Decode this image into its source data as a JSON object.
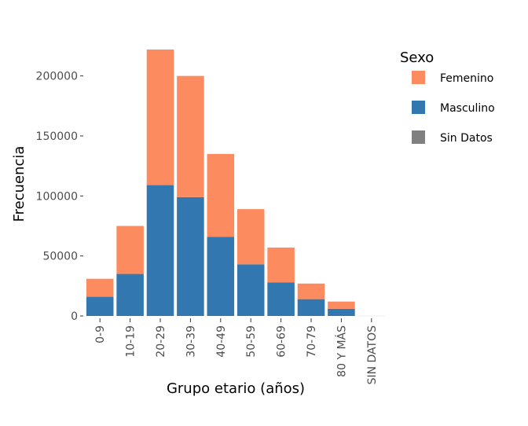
{
  "chart_data": {
    "type": "bar",
    "stacked": true,
    "title": "",
    "xlabel": "Grupo etario (años)",
    "ylabel": "Frecuencia",
    "categories": [
      "0-9",
      "10-19",
      "20-29",
      "30-39",
      "40-49",
      "50-59",
      "60-69",
      "70-79",
      "80 Y MÁS",
      "SIN DATOS"
    ],
    "series": [
      {
        "name": "Masculino",
        "color": "#3277b0",
        "values": [
          16000,
          35000,
          109000,
          99000,
          66000,
          43000,
          28000,
          14000,
          6000,
          0
        ]
      },
      {
        "name": "Femenino",
        "color": "#fc8c5f",
        "values": [
          15000,
          40000,
          113000,
          101000,
          69000,
          46000,
          29000,
          13000,
          6000,
          0
        ]
      },
      {
        "name": "Sin Datos",
        "color": "#808080",
        "values": [
          0,
          0,
          0,
          0,
          0,
          0,
          0,
          0,
          0,
          0
        ]
      }
    ],
    "ylim": [
      0,
      222000
    ],
    "yticks": [
      0,
      50000,
      100000,
      150000,
      200000
    ],
    "ytick_labels": [
      "0",
      "50000",
      "100000",
      "150000",
      "200000"
    ],
    "grid": false,
    "legend": {
      "title": "Sexo",
      "placement": "right",
      "entries": [
        {
          "label": "Femenino",
          "color": "#fc8c5f"
        },
        {
          "label": "Masculino",
          "color": "#3277b0"
        },
        {
          "label": "Sin Datos",
          "color": "#808080"
        }
      ]
    }
  }
}
